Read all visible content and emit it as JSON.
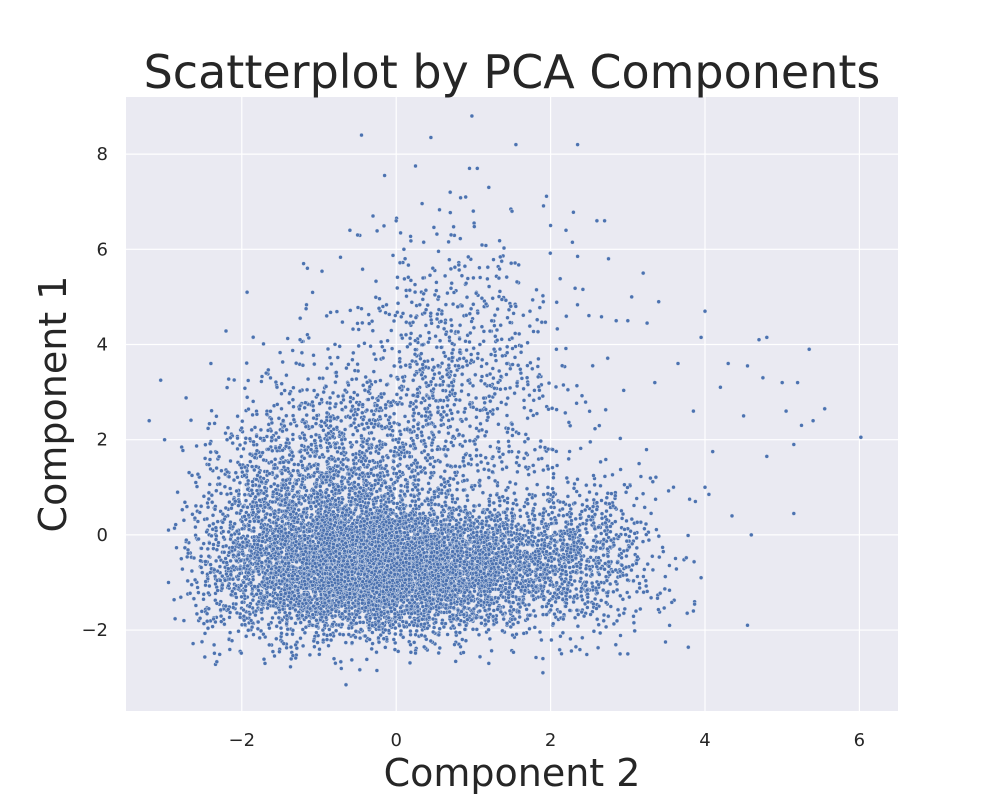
{
  "chart_data": {
    "type": "scatter",
    "title": "Scatterplot by PCA Components",
    "xlabel": "Component 2",
    "ylabel": "Component 1",
    "xlim": [
      -3.5,
      6.5
    ],
    "ylim": [
      -3.7,
      9.2
    ],
    "xticks": [
      -2,
      0,
      2,
      4,
      6
    ],
    "yticks": [
      -2,
      0,
      2,
      4,
      6,
      8
    ],
    "xtick_labels": [
      "−2",
      "0",
      "2",
      "4",
      "6"
    ],
    "ytick_labels": [
      "−2",
      "0",
      "2",
      "4",
      "6",
      "8"
    ],
    "grid": true,
    "background_color": "#eaeaf2",
    "marker_color": "#4c72b0",
    "marker_edge_color": "#ffffff",
    "approx_point_count": 11000,
    "points": [
      [
        0.98,
        8.8
      ],
      [
        -0.45,
        8.4
      ],
      [
        0.45,
        8.35
      ],
      [
        1.55,
        8.2
      ],
      [
        2.35,
        8.2
      ],
      [
        -0.15,
        7.55
      ],
      [
        0.95,
        7.7
      ],
      [
        1.05,
        7.7
      ],
      [
        0.25,
        7.75
      ],
      [
        1.2,
        7.3
      ],
      [
        0.7,
        7.2
      ],
      [
        0.9,
        7.1
      ],
      [
        -0.3,
        6.7
      ],
      [
        -0.6,
        6.4
      ],
      [
        0.0,
        6.6
      ],
      [
        1.5,
        6.8
      ],
      [
        2.6,
        6.6
      ],
      [
        2.7,
        6.6
      ],
      [
        2.0,
        6.5
      ],
      [
        2.2,
        6.4
      ],
      [
        2.35,
        5.85
      ],
      [
        2.75,
        5.8
      ],
      [
        3.2,
        5.5
      ],
      [
        3.05,
        5.0
      ],
      [
        3.4,
        4.9
      ],
      [
        2.85,
        4.5
      ],
      [
        3.0,
        4.5
      ],
      [
        3.25,
        4.45
      ],
      [
        4.0,
        4.7
      ],
      [
        3.95,
        4.15
      ],
      [
        4.8,
        4.15
      ],
      [
        4.7,
        4.1
      ],
      [
        5.35,
        3.9
      ],
      [
        4.3,
        3.6
      ],
      [
        4.55,
        3.55
      ],
      [
        4.75,
        3.3
      ],
      [
        5.0,
        3.2
      ],
      [
        5.2,
        3.2
      ],
      [
        5.05,
        2.6
      ],
      [
        5.55,
        2.65
      ],
      [
        5.4,
        2.4
      ],
      [
        5.25,
        2.3
      ],
      [
        5.15,
        1.9
      ],
      [
        4.8,
        1.65
      ],
      [
        6.02,
        2.05
      ],
      [
        4.5,
        2.5
      ],
      [
        4.1,
        1.75
      ],
      [
        3.85,
        2.6
      ],
      [
        3.35,
        3.2
      ],
      [
        3.65,
        3.6
      ],
      [
        4.2,
        3.1
      ],
      [
        4.0,
        1.0
      ],
      [
        4.05,
        0.85
      ],
      [
        3.8,
        0.75
      ],
      [
        5.15,
        0.45
      ],
      [
        4.35,
        0.4
      ],
      [
        4.6,
        0.0
      ],
      [
        4.55,
        -1.9
      ],
      [
        3.95,
        -0.9
      ],
      [
        3.85,
        -1.6
      ],
      [
        3.0,
        -2.5
      ],
      [
        2.9,
        -2.5
      ],
      [
        -3.2,
        2.4
      ],
      [
        -3.05,
        3.25
      ],
      [
        -2.95,
        0.1
      ],
      [
        -2.75,
        -1.8
      ],
      [
        -2.95,
        -1.0
      ],
      [
        -3.0,
        2.0
      ],
      [
        -0.65,
        -3.15
      ],
      [
        -1.7,
        -2.7
      ],
      [
        -0.25,
        -2.85
      ],
      [
        1.2,
        -2.7
      ],
      [
        1.9,
        -2.6
      ],
      [
        -2.4,
        3.6
      ],
      [
        -1.15,
        5.6
      ],
      [
        -1.2,
        5.7
      ],
      [
        -0.5,
        6.3
      ],
      [
        0.1,
        6.0
      ],
      [
        1.0,
        5.4
      ],
      [
        0.55,
        5.0
      ],
      [
        -0.9,
        4.6
      ]
    ],
    "clusters": [
      {
        "center": [
          -0.3,
          -0.7
        ],
        "spread": [
          0.85,
          0.65
        ],
        "count": 6000
      },
      {
        "center": [
          -1.0,
          0.7
        ],
        "spread": [
          0.7,
          1.15
        ],
        "count": 1800
      },
      {
        "center": [
          0.4,
          2.3
        ],
        "spread": [
          0.9,
          1.5
        ],
        "count": 1100
      },
      {
        "center": [
          1.6,
          -0.6
        ],
        "spread": [
          0.75,
          0.7
        ],
        "count": 1400
      },
      {
        "center": [
          2.6,
          -0.4
        ],
        "spread": [
          0.45,
          0.9
        ],
        "count": 300
      },
      {
        "center": [
          0.9,
          4.6
        ],
        "spread": [
          0.6,
          1.0
        ],
        "count": 220
      },
      {
        "center": [
          -1.9,
          -0.4
        ],
        "spread": [
          0.45,
          1.2
        ],
        "count": 450
      }
    ]
  }
}
